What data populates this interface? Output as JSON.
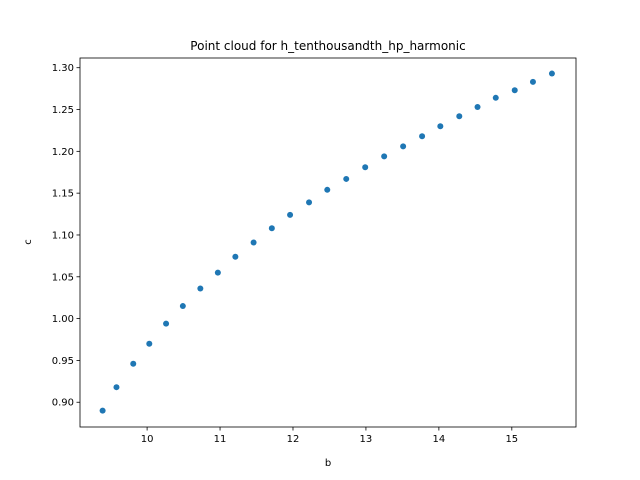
{
  "chart_data": {
    "type": "scatter",
    "title": "Point cloud for h_tenthousandth_hp_harmonic",
    "xlabel": "b",
    "ylabel": "c",
    "xlim": [
      9.08,
      15.88
    ],
    "ylim": [
      0.8704,
      1.3116
    ],
    "xticks": [
      "10",
      "11",
      "12",
      "13",
      "14",
      "15"
    ],
    "yticks": [
      "0.90",
      "0.95",
      "1.00",
      "1.05",
      "1.10",
      "1.15",
      "1.20",
      "1.25",
      "1.30"
    ],
    "grid": false,
    "marker_color": "#1f77b4",
    "points": [
      {
        "x": 9.39,
        "y": 0.89
      },
      {
        "x": 9.58,
        "y": 0.918
      },
      {
        "x": 9.81,
        "y": 0.946
      },
      {
        "x": 10.03,
        "y": 0.97
      },
      {
        "x": 10.26,
        "y": 0.994
      },
      {
        "x": 10.49,
        "y": 1.015
      },
      {
        "x": 10.73,
        "y": 1.036
      },
      {
        "x": 10.97,
        "y": 1.055
      },
      {
        "x": 11.21,
        "y": 1.074
      },
      {
        "x": 11.46,
        "y": 1.091
      },
      {
        "x": 11.71,
        "y": 1.108
      },
      {
        "x": 11.96,
        "y": 1.124
      },
      {
        "x": 12.22,
        "y": 1.139
      },
      {
        "x": 12.47,
        "y": 1.154
      },
      {
        "x": 12.73,
        "y": 1.167
      },
      {
        "x": 12.99,
        "y": 1.181
      },
      {
        "x": 13.25,
        "y": 1.194
      },
      {
        "x": 13.51,
        "y": 1.206
      },
      {
        "x": 13.77,
        "y": 1.218
      },
      {
        "x": 14.02,
        "y": 1.23
      },
      {
        "x": 14.28,
        "y": 1.242
      },
      {
        "x": 14.53,
        "y": 1.253
      },
      {
        "x": 14.78,
        "y": 1.264
      },
      {
        "x": 15.04,
        "y": 1.273
      },
      {
        "x": 15.29,
        "y": 1.283
      },
      {
        "x": 15.55,
        "y": 1.293
      }
    ]
  }
}
